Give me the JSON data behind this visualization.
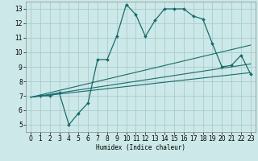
{
  "xlabel": "Humidex (Indice chaleur)",
  "ylabel": "",
  "bg_color": "#cce8e8",
  "grid_color": "#aacccc",
  "line_color": "#1a6b6b",
  "xlim": [
    -0.5,
    23.5
  ],
  "ylim": [
    4.5,
    13.5
  ],
  "xticks": [
    0,
    1,
    2,
    3,
    4,
    5,
    6,
    7,
    8,
    9,
    10,
    11,
    12,
    13,
    14,
    15,
    16,
    17,
    18,
    19,
    20,
    21,
    22,
    23
  ],
  "yticks": [
    5,
    6,
    7,
    8,
    9,
    10,
    11,
    12,
    13
  ],
  "main_line": {
    "x": [
      1,
      2,
      3,
      4,
      5,
      6,
      7,
      8,
      9,
      10,
      11,
      12,
      13,
      14,
      15,
      16,
      17,
      18,
      19,
      20,
      21,
      22,
      23
    ],
    "y": [
      7.0,
      7.0,
      7.2,
      5.0,
      5.8,
      6.5,
      9.5,
      9.5,
      11.1,
      13.3,
      12.6,
      11.1,
      12.2,
      13.0,
      13.0,
      13.0,
      12.5,
      12.3,
      10.6,
      9.0,
      9.1,
      9.8,
      8.5
    ]
  },
  "ref_lines": [
    {
      "x": [
        0,
        23
      ],
      "y": [
        6.9,
        8.6
      ]
    },
    {
      "x": [
        0,
        23
      ],
      "y": [
        6.9,
        9.2
      ]
    },
    {
      "x": [
        0,
        23
      ],
      "y": [
        6.9,
        10.5
      ]
    }
  ]
}
